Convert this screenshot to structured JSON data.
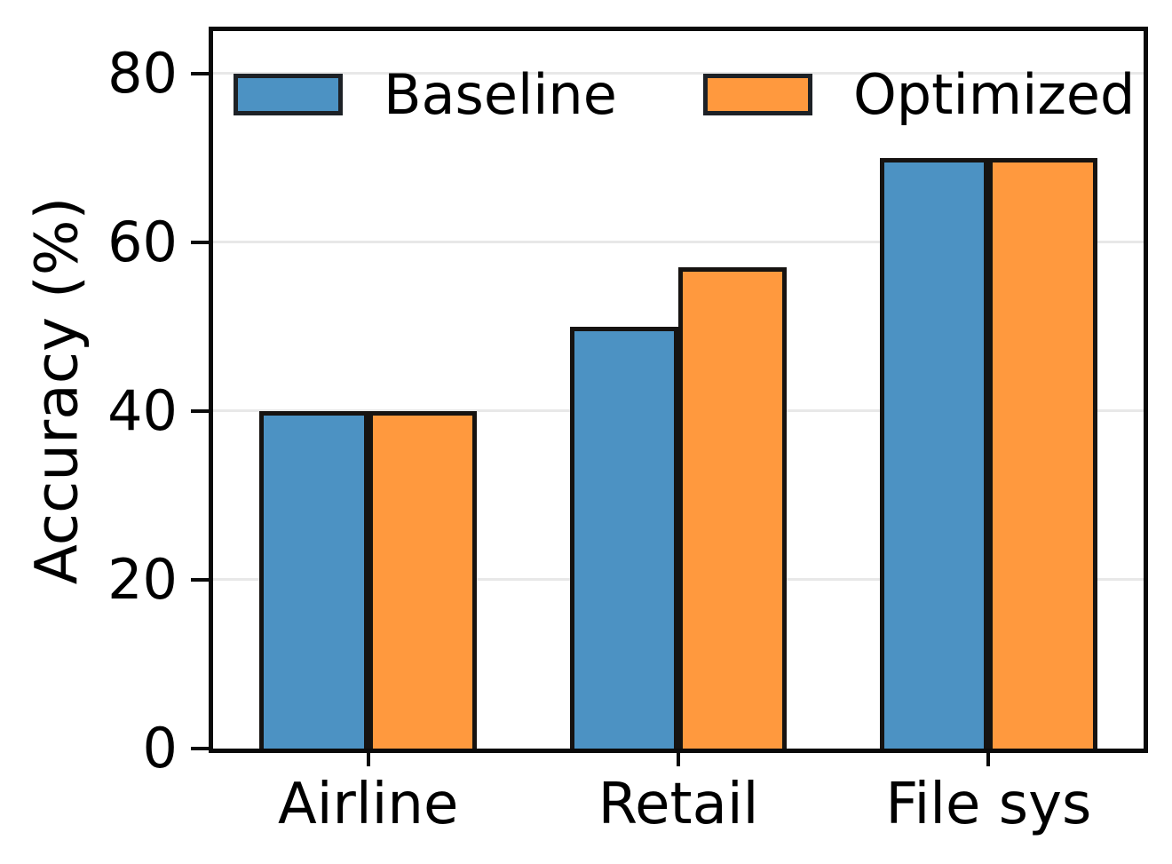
{
  "figure": {
    "background": "#ffffff",
    "spine_color": "#0a0a0a",
    "grid_color": "#e8e8e8",
    "text_color": "#000000"
  },
  "chart_data": {
    "type": "bar",
    "title": "",
    "categories": [
      "Airline",
      "Retail",
      "File sys"
    ],
    "series": [
      {
        "name": "Baseline",
        "color": "#4C92C3",
        "values": [
          40,
          50,
          70
        ]
      },
      {
        "name": "Optimized",
        "color": "#FF993E",
        "values": [
          40,
          57,
          70
        ]
      }
    ],
    "xlabel": "",
    "ylabel": "Accuracy (%)",
    "ylim": [
      0,
      85
    ],
    "yticks": [
      0,
      20,
      40,
      60,
      80
    ],
    "grid": "horizontal gridlines at y ticks, drawn behind bars",
    "legend": {
      "position": "upper inside plot, frameless, horizontal",
      "entries": [
        "Baseline",
        "Optimized"
      ]
    },
    "bar_edge_color": "#161311",
    "bar_width_fraction": 0.35
  }
}
